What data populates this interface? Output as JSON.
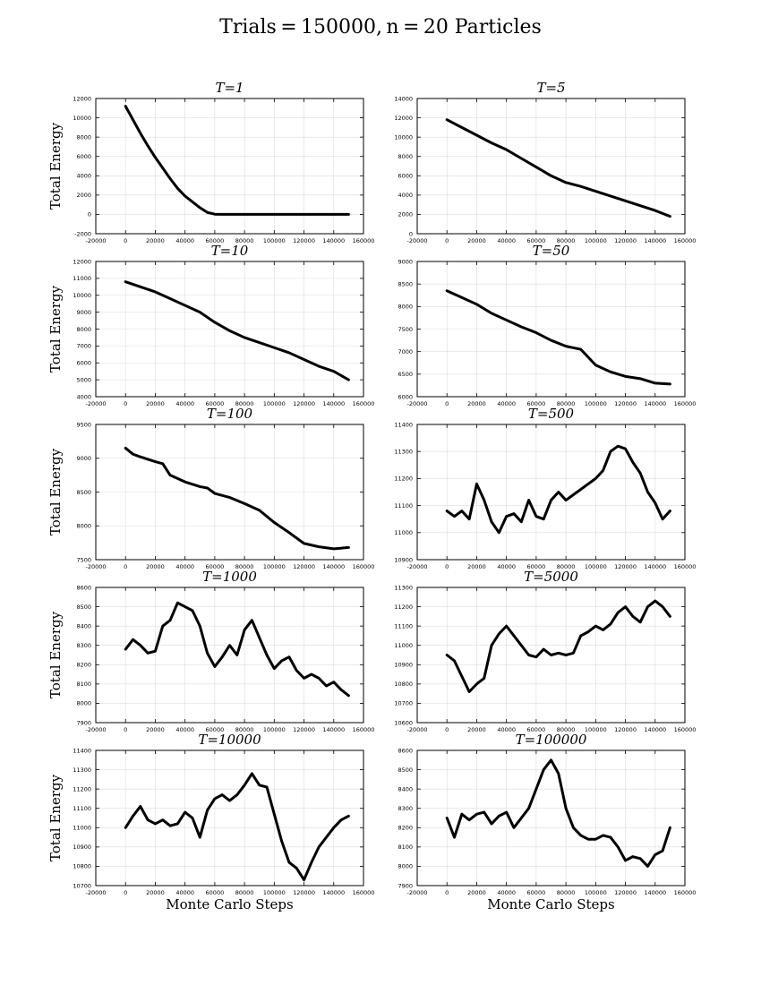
{
  "figure": {
    "title": "Trials = 150000, n = 20 Particles",
    "line_color": "#000000",
    "grid_color": "#dddddd"
  },
  "chart_data": [
    {
      "type": "line",
      "title": "T=1",
      "ylabel": "Total Energy",
      "xlabel": "",
      "grid": true,
      "xlim": [
        -20000,
        160000
      ],
      "xticks": [
        -20000,
        0,
        20000,
        40000,
        60000,
        80000,
        100000,
        120000,
        140000,
        160000
      ],
      "ylim": [
        -2000,
        12000
      ],
      "yticks": [
        -2000,
        0,
        2000,
        4000,
        6000,
        8000,
        10000,
        12000
      ],
      "series": [
        {
          "x": [
            0,
            5000,
            10000,
            15000,
            20000,
            25000,
            30000,
            35000,
            40000,
            45000,
            50000,
            55000,
            60000,
            65000,
            70000,
            80000,
            100000,
            120000,
            140000,
            150000
          ],
          "y": [
            11200,
            9800,
            8400,
            7100,
            5900,
            4800,
            3700,
            2700,
            1900,
            1300,
            700,
            200,
            20,
            0,
            0,
            0,
            0,
            0,
            0,
            0
          ]
        }
      ]
    },
    {
      "type": "line",
      "title": "T=5",
      "ylabel": "",
      "xlabel": "",
      "grid": true,
      "xlim": [
        -20000,
        160000
      ],
      "xticks": [
        -20000,
        0,
        20000,
        40000,
        60000,
        80000,
        100000,
        120000,
        140000,
        160000
      ],
      "ylim": [
        0,
        14000
      ],
      "yticks": [
        0,
        2000,
        4000,
        6000,
        8000,
        10000,
        12000,
        14000
      ],
      "series": [
        {
          "x": [
            0,
            10000,
            20000,
            30000,
            40000,
            50000,
            60000,
            70000,
            80000,
            90000,
            100000,
            110000,
            120000,
            130000,
            140000,
            150000
          ],
          "y": [
            11800,
            11000,
            10200,
            9400,
            8700,
            7800,
            6900,
            6000,
            5300,
            4900,
            4400,
            3900,
            3400,
            2900,
            2400,
            1800
          ]
        }
      ]
    },
    {
      "type": "line",
      "title": "T=10",
      "ylabel": "Total Energy",
      "xlabel": "",
      "grid": true,
      "xlim": [
        -20000,
        160000
      ],
      "xticks": [
        -20000,
        0,
        20000,
        40000,
        60000,
        80000,
        100000,
        120000,
        140000,
        160000
      ],
      "ylim": [
        4000,
        12000
      ],
      "yticks": [
        4000,
        5000,
        6000,
        7000,
        8000,
        9000,
        10000,
        11000,
        12000
      ],
      "series": [
        {
          "x": [
            0,
            10000,
            20000,
            30000,
            40000,
            50000,
            60000,
            70000,
            80000,
            90000,
            100000,
            110000,
            120000,
            130000,
            140000,
            150000
          ],
          "y": [
            10800,
            10500,
            10200,
            9800,
            9400,
            9000,
            8400,
            7900,
            7500,
            7200,
            6900,
            6600,
            6200,
            5800,
            5500,
            5000
          ]
        }
      ]
    },
    {
      "type": "line",
      "title": "T=50",
      "ylabel": "",
      "xlabel": "",
      "grid": true,
      "xlim": [
        -20000,
        160000
      ],
      "xticks": [
        -20000,
        0,
        20000,
        40000,
        60000,
        80000,
        100000,
        120000,
        140000,
        160000
      ],
      "ylim": [
        6000,
        9000
      ],
      "yticks": [
        6000,
        6500,
        7000,
        7500,
        8000,
        8500,
        9000
      ],
      "series": [
        {
          "x": [
            0,
            10000,
            20000,
            30000,
            40000,
            50000,
            60000,
            70000,
            80000,
            90000,
            100000,
            110000,
            120000,
            130000,
            140000,
            150000
          ],
          "y": [
            8350,
            8200,
            8050,
            7850,
            7700,
            7550,
            7420,
            7250,
            7120,
            7050,
            6700,
            6550,
            6450,
            6400,
            6300,
            6280
          ]
        }
      ]
    },
    {
      "type": "line",
      "title": "T=100",
      "ylabel": "Total Energy",
      "xlabel": "",
      "grid": true,
      "xlim": [
        -20000,
        160000
      ],
      "xticks": [
        -20000,
        0,
        20000,
        40000,
        60000,
        80000,
        100000,
        120000,
        140000,
        160000
      ],
      "ylim": [
        7500,
        9500
      ],
      "yticks": [
        7500,
        8000,
        8500,
        9000,
        9500
      ],
      "series": [
        {
          "x": [
            0,
            5000,
            10000,
            20000,
            25000,
            30000,
            40000,
            50000,
            55000,
            60000,
            70000,
            80000,
            90000,
            100000,
            110000,
            120000,
            130000,
            140000,
            150000
          ],
          "y": [
            9150,
            9060,
            9020,
            8950,
            8920,
            8750,
            8650,
            8580,
            8560,
            8480,
            8420,
            8330,
            8230,
            8050,
            7900,
            7740,
            7690,
            7660,
            7680
          ]
        }
      ]
    },
    {
      "type": "line",
      "title": "T=500",
      "ylabel": "",
      "xlabel": "",
      "grid": true,
      "xlim": [
        -20000,
        160000
      ],
      "xticks": [
        -20000,
        0,
        20000,
        40000,
        60000,
        80000,
        100000,
        120000,
        140000,
        160000
      ],
      "ylim": [
        10900,
        11400
      ],
      "yticks": [
        10900,
        11000,
        11100,
        11200,
        11300,
        11400
      ],
      "series": [
        {
          "x": [
            0,
            5000,
            10000,
            15000,
            20000,
            25000,
            30000,
            35000,
            40000,
            45000,
            50000,
            55000,
            60000,
            65000,
            70000,
            75000,
            80000,
            85000,
            90000,
            95000,
            100000,
            105000,
            110000,
            115000,
            120000,
            125000,
            130000,
            135000,
            140000,
            145000,
            150000
          ],
          "y": [
            11080,
            11060,
            11080,
            11050,
            11180,
            11120,
            11040,
            11000,
            11060,
            11070,
            11040,
            11120,
            11060,
            11050,
            11120,
            11150,
            11120,
            11140,
            11160,
            11180,
            11200,
            11230,
            11300,
            11320,
            11310,
            11260,
            11220,
            11150,
            11110,
            11050,
            11080
          ]
        }
      ]
    },
    {
      "type": "line",
      "title": "T=1000",
      "ylabel": "Total Energy",
      "xlabel": "",
      "grid": true,
      "xlim": [
        -20000,
        160000
      ],
      "xticks": [
        -20000,
        0,
        20000,
        40000,
        60000,
        80000,
        100000,
        120000,
        140000,
        160000
      ],
      "ylim": [
        7900,
        8600
      ],
      "yticks": [
        7900,
        8000,
        8100,
        8200,
        8300,
        8400,
        8500,
        8600
      ],
      "series": [
        {
          "x": [
            0,
            5000,
            10000,
            15000,
            20000,
            25000,
            30000,
            35000,
            40000,
            45000,
            50000,
            55000,
            60000,
            65000,
            70000,
            75000,
            80000,
            85000,
            90000,
            95000,
            100000,
            105000,
            110000,
            115000,
            120000,
            125000,
            130000,
            135000,
            140000,
            145000,
            150000
          ],
          "y": [
            8280,
            8330,
            8300,
            8260,
            8270,
            8400,
            8430,
            8520,
            8500,
            8480,
            8400,
            8260,
            8190,
            8240,
            8300,
            8250,
            8380,
            8430,
            8340,
            8250,
            8180,
            8220,
            8240,
            8170,
            8130,
            8150,
            8130,
            8090,
            8110,
            8070,
            8040
          ]
        }
      ]
    },
    {
      "type": "line",
      "title": "T=5000",
      "ylabel": "",
      "xlabel": "",
      "grid": true,
      "xlim": [
        -20000,
        160000
      ],
      "xticks": [
        -20000,
        0,
        20000,
        40000,
        60000,
        80000,
        100000,
        120000,
        140000,
        160000
      ],
      "ylim": [
        10600,
        11300
      ],
      "yticks": [
        10600,
        10700,
        10800,
        10900,
        11000,
        11100,
        11200,
        11300
      ],
      "series": [
        {
          "x": [
            0,
            5000,
            10000,
            15000,
            20000,
            25000,
            30000,
            35000,
            40000,
            45000,
            50000,
            55000,
            60000,
            65000,
            70000,
            75000,
            80000,
            85000,
            90000,
            95000,
            100000,
            105000,
            110000,
            115000,
            120000,
            125000,
            130000,
            135000,
            140000,
            145000,
            150000
          ],
          "y": [
            10950,
            10920,
            10840,
            10760,
            10800,
            10830,
            11000,
            11060,
            11100,
            11050,
            11000,
            10950,
            10940,
            10980,
            10950,
            10960,
            10950,
            10960,
            11050,
            11070,
            11100,
            11080,
            11110,
            11170,
            11200,
            11150,
            11120,
            11200,
            11230,
            11200,
            11150
          ]
        }
      ]
    },
    {
      "type": "line",
      "title": "T=10000",
      "ylabel": "Total Energy",
      "xlabel": "Monte Carlo Steps",
      "grid": true,
      "xlim": [
        -20000,
        160000
      ],
      "xticks": [
        -20000,
        0,
        20000,
        40000,
        60000,
        80000,
        100000,
        120000,
        140000,
        160000
      ],
      "ylim": [
        10700,
        11400
      ],
      "yticks": [
        10700,
        10800,
        10900,
        11000,
        11100,
        11200,
        11300,
        11400
      ],
      "series": [
        {
          "x": [
            0,
            5000,
            10000,
            15000,
            20000,
            25000,
            30000,
            35000,
            40000,
            45000,
            50000,
            55000,
            60000,
            65000,
            70000,
            75000,
            80000,
            85000,
            90000,
            95000,
            100000,
            105000,
            110000,
            115000,
            120000,
            125000,
            130000,
            135000,
            140000,
            145000,
            150000
          ],
          "y": [
            11000,
            11060,
            11110,
            11040,
            11020,
            11040,
            11010,
            11020,
            11080,
            11050,
            10950,
            11090,
            11150,
            11170,
            11140,
            11170,
            11220,
            11280,
            11220,
            11210,
            11070,
            10930,
            10820,
            10790,
            10730,
            10820,
            10900,
            10950,
            11000,
            11040,
            11060
          ]
        }
      ]
    },
    {
      "type": "line",
      "title": "T=100000",
      "ylabel": "",
      "xlabel": "Monte Carlo Steps",
      "grid": true,
      "xlim": [
        -20000,
        160000
      ],
      "xticks": [
        -20000,
        0,
        20000,
        40000,
        60000,
        80000,
        100000,
        120000,
        140000,
        160000
      ],
      "ylim": [
        7900,
        8600
      ],
      "yticks": [
        7900,
        8000,
        8100,
        8200,
        8300,
        8400,
        8500,
        8600
      ],
      "series": [
        {
          "x": [
            0,
            5000,
            10000,
            15000,
            20000,
            25000,
            30000,
            35000,
            40000,
            45000,
            50000,
            55000,
            60000,
            65000,
            70000,
            75000,
            80000,
            85000,
            90000,
            95000,
            100000,
            105000,
            110000,
            115000,
            120000,
            125000,
            130000,
            135000,
            140000,
            145000,
            150000
          ],
          "y": [
            8250,
            8150,
            8270,
            8240,
            8270,
            8280,
            8220,
            8260,
            8280,
            8200,
            8250,
            8300,
            8400,
            8500,
            8550,
            8480,
            8300,
            8200,
            8160,
            8140,
            8140,
            8160,
            8150,
            8100,
            8030,
            8050,
            8040,
            8000,
            8060,
            8080,
            8200
          ]
        }
      ]
    }
  ]
}
